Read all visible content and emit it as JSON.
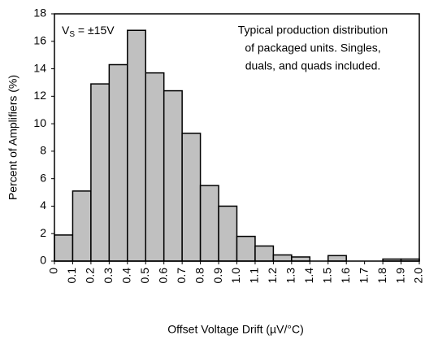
{
  "chart_data": {
    "type": "histogram",
    "bins": [
      0,
      0.1,
      0.2,
      0.3,
      0.4,
      0.5,
      0.6,
      0.7,
      0.8,
      0.9,
      1.0,
      1.1,
      1.2,
      1.3,
      1.4,
      1.5,
      1.6,
      1.7,
      1.8,
      1.9,
      2.0
    ],
    "counts": [
      1.9,
      5.1,
      12.9,
      14.3,
      16.8,
      13.7,
      12.4,
      9.3,
      5.5,
      4.0,
      1.8,
      1.1,
      0.45,
      0.3,
      0,
      0.4,
      0,
      0,
      0.15,
      0.15
    ],
    "color": "#c0c0c0",
    "xlabel": "Offset Voltage Drift (µV/°C)",
    "ylabel": "Percent of Amplifiers (%)",
    "xlim": [
      0,
      2.0
    ],
    "ylim": [
      0,
      18
    ],
    "xticks": [
      0,
      0.1,
      0.2,
      0.3,
      0.4,
      0.5,
      0.6,
      0.7,
      0.8,
      0.9,
      {
        "value": 1.0,
        "label": "1.0"
      },
      1.1,
      1.2,
      1.3,
      1.4,
      1.5,
      1.6,
      1.7,
      1.8,
      1.9,
      {
        "value": 2.0,
        "label": "2.0"
      }
    ],
    "yticks": [
      0,
      2,
      4,
      6,
      8,
      10,
      12,
      14,
      16,
      18
    ],
    "condition": [
      "V",
      "S",
      " = ±15V"
    ],
    "note": [
      "Typical production distribution",
      "of packaged units. Singles,",
      "duals, and quads included."
    ]
  }
}
